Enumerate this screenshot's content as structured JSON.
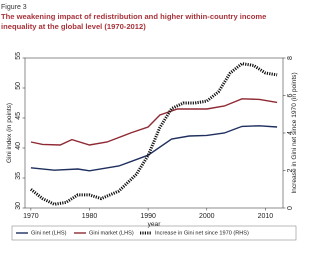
{
  "chart_data": {
    "type": "line",
    "figure_label": "Figure 3",
    "title": [
      "The weakening impact of redistribution and higher within-country income",
      "inequality at the global level (1970-2012)"
    ],
    "x_label": "year",
    "y_label": "Gini index (in points)",
    "y2_label": "Increase in Gini net since 1970 (in points)",
    "xlim": [
      1969,
      2013
    ],
    "xticks": [
      1970,
      1980,
      1990,
      2000,
      2010
    ],
    "ylim": [
      30,
      55
    ],
    "yticks": [
      30,
      35,
      40,
      45,
      50,
      55
    ],
    "y2lim": [
      0,
      8
    ],
    "y2ticks": [
      0,
      2,
      4,
      6,
      8
    ],
    "series": [
      {
        "name": "Gini net (LHS)",
        "color": "#1f2f5e",
        "style": "solid",
        "x": [
          1970,
          1974,
          1978,
          1980,
          1985,
          1990,
          1994,
          1997,
          2000,
          2003,
          2006,
          2009,
          2012
        ],
        "values": [
          36.7,
          36.3,
          36.5,
          36.2,
          37.0,
          38.8,
          41.5,
          42.0,
          42.1,
          42.5,
          43.6,
          43.7,
          43.5
        ]
      },
      {
        "name": "Gini market (LHS)",
        "color": "#8f2a35",
        "style": "solid",
        "x": [
          1970,
          1972,
          1975,
          1977,
          1980,
          1983,
          1987,
          1990,
          1992,
          1995,
          2000,
          2003,
          2006,
          2009,
          2012
        ],
        "values": [
          41.0,
          40.6,
          40.5,
          41.4,
          40.5,
          41.0,
          42.5,
          43.5,
          45.5,
          46.5,
          46.5,
          47.0,
          48.2,
          48.1,
          47.6
        ]
      },
      {
        "name": "Increase in Gini net since 1970 (RHS)",
        "color": "#111111",
        "style": "dotted",
        "axis": "y2",
        "x": [
          1970,
          1972,
          1974,
          1976,
          1978,
          1980,
          1982,
          1985,
          1988,
          1990,
          1992,
          1994,
          1996,
          1998,
          2000,
          2002,
          2004,
          2006,
          2008,
          2010,
          2012
        ],
        "values": [
          1.0,
          0.5,
          0.2,
          0.3,
          0.7,
          0.7,
          0.5,
          0.9,
          1.8,
          2.8,
          4.3,
          5.3,
          5.6,
          5.6,
          5.7,
          6.2,
          7.2,
          7.7,
          7.6,
          7.2,
          7.1
        ]
      }
    ]
  }
}
